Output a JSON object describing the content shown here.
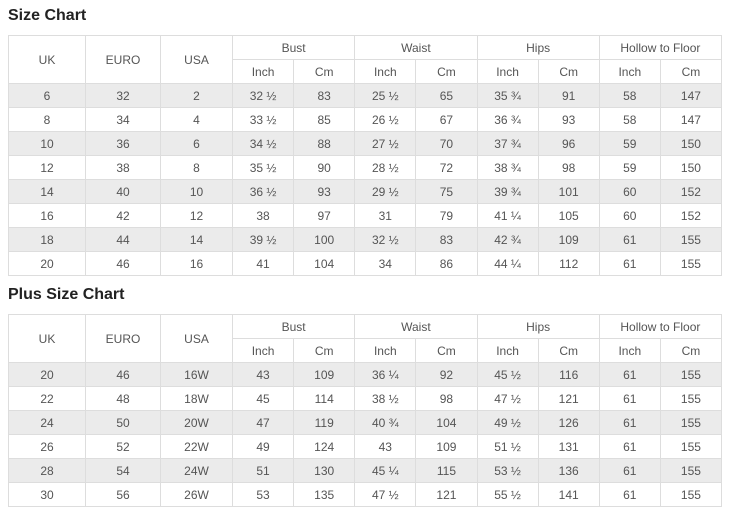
{
  "colors": {
    "stripe": "#ebebeb",
    "border": "#dddddd",
    "cell_text": "#555555",
    "title_text": "#222222",
    "background": "#ffffff"
  },
  "tables": [
    {
      "id": "size-chart",
      "title": "Size Chart",
      "plain_columns": [
        "UK",
        "EURO",
        "USA"
      ],
      "group_columns": [
        "Bust",
        "Waist",
        "Hips",
        "Hollow to Floor"
      ],
      "sub_columns": [
        "Inch",
        "Cm"
      ],
      "rows": [
        [
          "6",
          "32",
          "2",
          "32 ½",
          "83",
          "25 ½",
          "65",
          "35 ¾",
          "91",
          "58",
          "147"
        ],
        [
          "8",
          "34",
          "4",
          "33 ½",
          "85",
          "26 ½",
          "67",
          "36 ¾",
          "93",
          "58",
          "147"
        ],
        [
          "10",
          "36",
          "6",
          "34 ½",
          "88",
          "27 ½",
          "70",
          "37 ¾",
          "96",
          "59",
          "150"
        ],
        [
          "12",
          "38",
          "8",
          "35 ½",
          "90",
          "28 ½",
          "72",
          "38 ¾",
          "98",
          "59",
          "150"
        ],
        [
          "14",
          "40",
          "10",
          "36 ½",
          "93",
          "29 ½",
          "75",
          "39 ¾",
          "101",
          "60",
          "152"
        ],
        [
          "16",
          "42",
          "12",
          "38",
          "97",
          "31",
          "79",
          "41 ¼",
          "105",
          "60",
          "152"
        ],
        [
          "18",
          "44",
          "14",
          "39 ½",
          "100",
          "32 ½",
          "83",
          "42 ¾",
          "109",
          "61",
          "155"
        ],
        [
          "20",
          "46",
          "16",
          "41",
          "104",
          "34",
          "86",
          "44 ¼",
          "112",
          "61",
          "155"
        ]
      ]
    },
    {
      "id": "plus-size-chart",
      "title": "Plus Size Chart",
      "plain_columns": [
        "UK",
        "EURO",
        "USA"
      ],
      "group_columns": [
        "Bust",
        "Waist",
        "Hips",
        "Hollow to Floor"
      ],
      "sub_columns": [
        "Inch",
        "Cm"
      ],
      "rows": [
        [
          "20",
          "46",
          "16W",
          "43",
          "109",
          "36 ¼",
          "92",
          "45 ½",
          "116",
          "61",
          "155"
        ],
        [
          "22",
          "48",
          "18W",
          "45",
          "114",
          "38 ½",
          "98",
          "47 ½",
          "121",
          "61",
          "155"
        ],
        [
          "24",
          "50",
          "20W",
          "47",
          "119",
          "40 ¾",
          "104",
          "49 ½",
          "126",
          "61",
          "155"
        ],
        [
          "26",
          "52",
          "22W",
          "49",
          "124",
          "43",
          "109",
          "51 ½",
          "131",
          "61",
          "155"
        ],
        [
          "28",
          "54",
          "24W",
          "51",
          "130",
          "45 ¼",
          "115",
          "53 ½",
          "136",
          "61",
          "155"
        ],
        [
          "30",
          "56",
          "26W",
          "53",
          "135",
          "47 ½",
          "121",
          "55 ½",
          "141",
          "61",
          "155"
        ]
      ]
    }
  ]
}
